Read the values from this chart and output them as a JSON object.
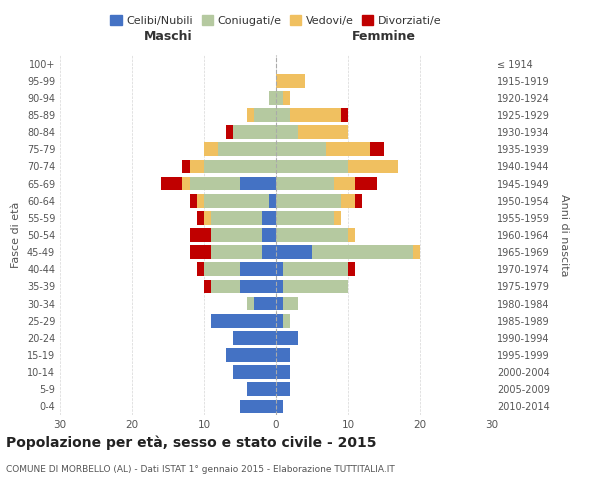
{
  "age_groups": [
    "0-4",
    "5-9",
    "10-14",
    "15-19",
    "20-24",
    "25-29",
    "30-34",
    "35-39",
    "40-44",
    "45-49",
    "50-54",
    "55-59",
    "60-64",
    "65-69",
    "70-74",
    "75-79",
    "80-84",
    "85-89",
    "90-94",
    "95-99",
    "100+"
  ],
  "birth_years": [
    "2010-2014",
    "2005-2009",
    "2000-2004",
    "1995-1999",
    "1990-1994",
    "1985-1989",
    "1980-1984",
    "1975-1979",
    "1970-1974",
    "1965-1969",
    "1960-1964",
    "1955-1959",
    "1950-1954",
    "1945-1949",
    "1940-1944",
    "1935-1939",
    "1930-1934",
    "1925-1929",
    "1920-1924",
    "1915-1919",
    "≤ 1914"
  ],
  "male": {
    "celibi": [
      5,
      4,
      6,
      7,
      6,
      9,
      3,
      5,
      5,
      2,
      2,
      2,
      1,
      5,
      0,
      0,
      0,
      0,
      0,
      0,
      0
    ],
    "coniugati": [
      0,
      0,
      0,
      0,
      0,
      0,
      1,
      4,
      5,
      7,
      7,
      7,
      9,
      7,
      10,
      8,
      6,
      3,
      1,
      0,
      0
    ],
    "vedovi": [
      0,
      0,
      0,
      0,
      0,
      0,
      0,
      0,
      0,
      0,
      0,
      1,
      1,
      1,
      2,
      2,
      0,
      1,
      0,
      0,
      0
    ],
    "divorziati": [
      0,
      0,
      0,
      0,
      0,
      0,
      0,
      1,
      1,
      3,
      3,
      1,
      1,
      3,
      1,
      0,
      1,
      0,
      0,
      0,
      0
    ]
  },
  "female": {
    "nubili": [
      1,
      2,
      2,
      2,
      3,
      1,
      1,
      1,
      1,
      5,
      0,
      0,
      0,
      0,
      0,
      0,
      0,
      0,
      0,
      0,
      0
    ],
    "coniugate": [
      0,
      0,
      0,
      0,
      0,
      1,
      2,
      9,
      9,
      14,
      10,
      8,
      9,
      8,
      10,
      7,
      3,
      2,
      1,
      0,
      0
    ],
    "vedove": [
      0,
      0,
      0,
      0,
      0,
      0,
      0,
      0,
      0,
      1,
      1,
      1,
      2,
      3,
      7,
      6,
      7,
      7,
      1,
      4,
      0
    ],
    "divorziate": [
      0,
      0,
      0,
      0,
      0,
      0,
      0,
      0,
      1,
      0,
      0,
      0,
      1,
      3,
      0,
      2,
      0,
      1,
      0,
      0,
      0
    ]
  },
  "colors": {
    "celibi": "#4472c4",
    "coniugati": "#b5c9a0",
    "vedovi": "#f0c060",
    "divorziati": "#c00000"
  },
  "title": "Popolazione per età, sesso e stato civile - 2015",
  "subtitle": "COMUNE DI MORBELLO (AL) - Dati ISTAT 1° gennaio 2015 - Elaborazione TUTTITALIA.IT",
  "xlabel_left": "Maschi",
  "xlabel_right": "Femmine",
  "ylabel_left": "Fasce di età",
  "ylabel_right": "Anni di nascita",
  "xlim": 30,
  "bg_color": "#ffffff",
  "grid_color": "#cccccc",
  "legend_labels": [
    "Celibi/Nubili",
    "Coniugati/e",
    "Vedovi/e",
    "Divorziati/e"
  ]
}
